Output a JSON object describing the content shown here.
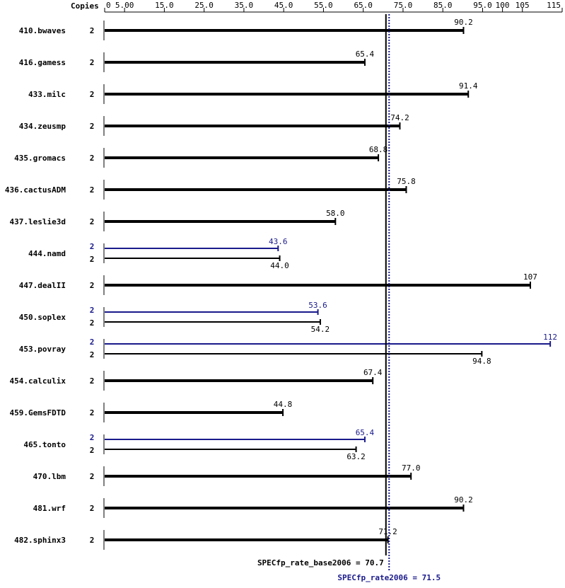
{
  "chart_data": {
    "type": "bar",
    "orientation": "horizontal",
    "copies_header": "Copies",
    "categories": [
      "410.bwaves",
      "416.gamess",
      "433.milc",
      "434.zeusmp",
      "435.gromacs",
      "436.cactusADM",
      "437.leslie3d",
      "444.namd",
      "447.dealII",
      "450.soplex",
      "453.povray",
      "454.calculix",
      "459.GemsFDTD",
      "465.tonto",
      "470.lbm",
      "481.wrf",
      "482.sphinx3"
    ],
    "series": [
      {
        "color": "#000000",
        "copies": [
          "2",
          "2",
          "2",
          "2",
          "2",
          "2",
          "2",
          "2",
          "2",
          "2",
          "2",
          "2",
          "2",
          "2",
          "2",
          "2",
          "2"
        ],
        "values": [
          90.2,
          65.4,
          91.4,
          74.2,
          68.8,
          75.8,
          58.0,
          44.0,
          107,
          54.2,
          94.8,
          67.4,
          44.8,
          63.2,
          77.0,
          90.2,
          71.2
        ],
        "value_labels": [
          "90.2",
          "65.4",
          "91.4",
          "74.2",
          "68.8",
          "75.8",
          "58.0",
          "44.0",
          "107",
          "54.2",
          "94.8",
          "67.4",
          "44.8",
          "63.2",
          "77.0",
          "90.2",
          "71.2"
        ]
      },
      {
        "color": "#1a1a8c",
        "copies": [
          null,
          null,
          null,
          null,
          null,
          null,
          null,
          "2",
          null,
          "2",
          "2",
          null,
          null,
          "2",
          null,
          null,
          null
        ],
        "values": [
          null,
          null,
          null,
          null,
          null,
          null,
          null,
          43.6,
          null,
          53.6,
          112,
          null,
          null,
          65.4,
          null,
          null,
          null
        ],
        "value_labels": [
          null,
          null,
          null,
          null,
          null,
          null,
          null,
          "43.6",
          null,
          "53.6",
          "112",
          null,
          null,
          "65.4",
          null,
          null,
          null
        ]
      }
    ],
    "xlim": [
      0,
      115
    ],
    "xticks": [
      0,
      {
        "value": 5,
        "label": "5.00"
      },
      {
        "value": 15,
        "label": "15.0"
      },
      {
        "value": 25,
        "label": "25.0"
      },
      {
        "value": 35,
        "label": "35.0"
      },
      {
        "value": 45,
        "label": "45.0"
      },
      {
        "value": 55,
        "label": "55.0"
      },
      {
        "value": 65,
        "label": "65.0"
      },
      {
        "value": 75,
        "label": "75.0"
      },
      {
        "value": 85,
        "label": "85.0"
      },
      {
        "value": 95,
        "label": "95.0"
      },
      100,
      105,
      115
    ],
    "reference_lines": [
      {
        "label": "SPECfp_rate_base2006 = 70.7",
        "value": 70.7,
        "color": "#000000",
        "style": "solid"
      },
      {
        "label": "SPECfp_rate2006 = 71.5",
        "value": 71.5,
        "color": "#1a1a8c",
        "style": "dotted"
      }
    ]
  }
}
